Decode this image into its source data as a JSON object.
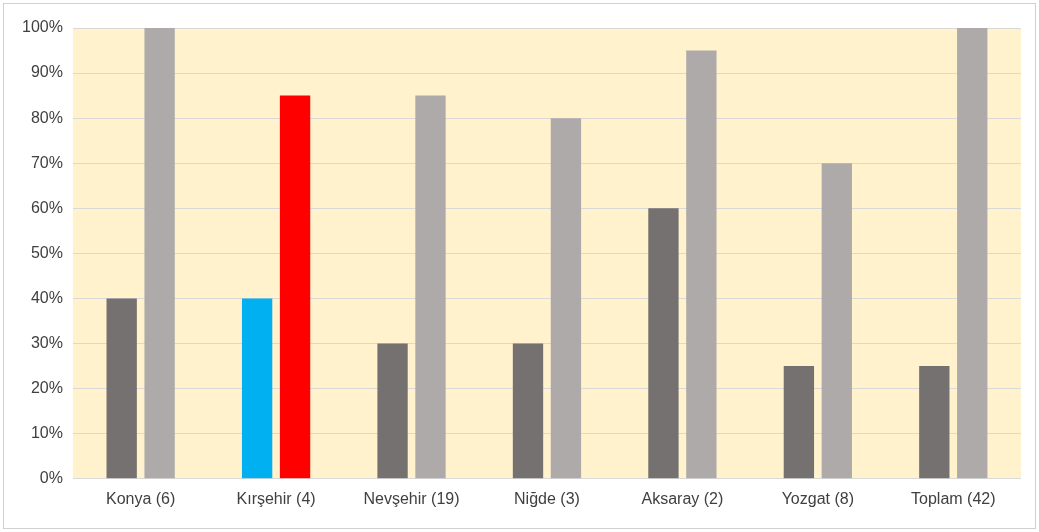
{
  "chart_data": {
    "type": "bar",
    "categories": [
      "Konya (6)",
      "Kırşehir (4)",
      "Nevşehir (19)",
      "Niğde (3)",
      "Aksaray (2)",
      "Yozgat (8)",
      "Toplam (42)"
    ],
    "series": [
      {
        "colors": [
          "#767171",
          "#00b0f0",
          "#767171",
          "#767171",
          "#767171",
          "#767171",
          "#767171"
        ],
        "values": [
          40,
          40,
          30,
          30,
          60,
          25,
          25
        ]
      },
      {
        "colors": [
          "#aeaaaa",
          "#ff0000",
          "#aeaaaa",
          "#aeaaaa",
          "#aeaaaa",
          "#aeaaaa",
          "#aeaaaa"
        ],
        "values": [
          100,
          85,
          85,
          80,
          95,
          70,
          100
        ]
      }
    ],
    "ylim": [
      0,
      100
    ],
    "yticks": [
      {
        "value": 0,
        "label": "0%"
      },
      {
        "value": 10,
        "label": "10%"
      },
      {
        "value": 20,
        "label": "20%"
      },
      {
        "value": 30,
        "label": "30%"
      },
      {
        "value": 40,
        "label": "40%"
      },
      {
        "value": 50,
        "label": "50%"
      },
      {
        "value": 60,
        "label": "60%"
      },
      {
        "value": 70,
        "label": "70%"
      },
      {
        "value": 80,
        "label": "80%"
      },
      {
        "value": 90,
        "label": "90%"
      },
      {
        "value": 100,
        "label": "100%"
      }
    ],
    "grid": "y",
    "legend": false
  }
}
